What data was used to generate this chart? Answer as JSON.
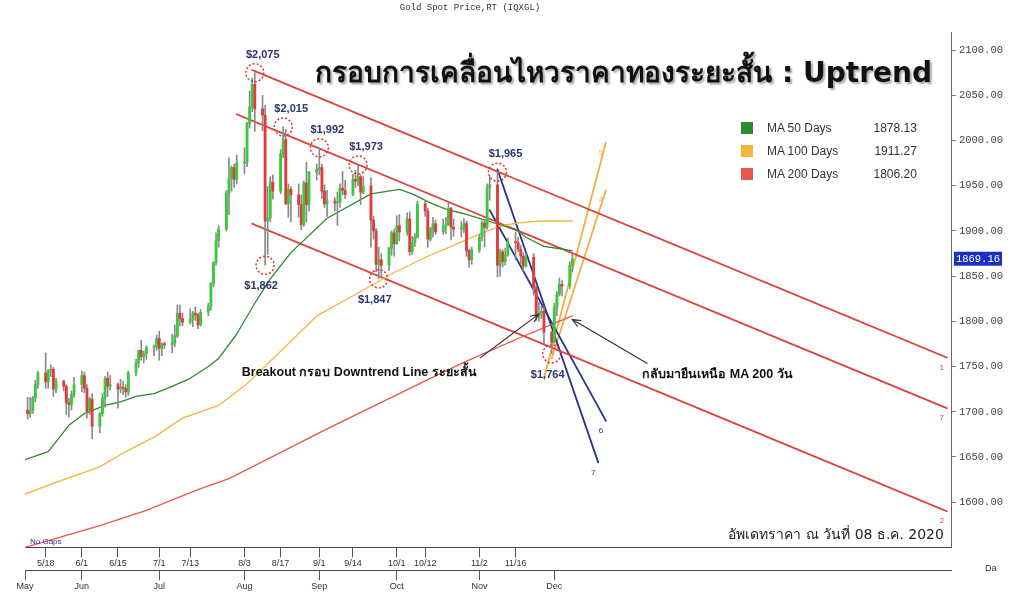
{
  "chart_data": {
    "type": "candlestick",
    "title": "กรอบการเคลื่อนไหวราคาทองระยะสั้น : Uptrend",
    "subtitle": "Gold Spot Price,RT (IQXGL)",
    "x": [
      "2020-05-11",
      "2020-05-12",
      "2020-05-13",
      "2020-05-14",
      "2020-05-15",
      "2020-05-18",
      "2020-05-19",
      "2020-05-20",
      "2020-05-21",
      "2020-05-22",
      "2020-05-25",
      "2020-05-26",
      "2020-05-27",
      "2020-05-28",
      "2020-05-29",
      "2020-06-01",
      "2020-06-02",
      "2020-06-03",
      "2020-06-04",
      "2020-06-05",
      "2020-06-08",
      "2020-06-09",
      "2020-06-10",
      "2020-06-11",
      "2020-06-12",
      "2020-06-15",
      "2020-06-16",
      "2020-06-17",
      "2020-06-18",
      "2020-06-19",
      "2020-06-22",
      "2020-06-23",
      "2020-06-24",
      "2020-06-25",
      "2020-06-26",
      "2020-06-29",
      "2020-06-30",
      "2020-07-01",
      "2020-07-02",
      "2020-07-03",
      "2020-07-06",
      "2020-07-07",
      "2020-07-08",
      "2020-07-09",
      "2020-07-10",
      "2020-07-13",
      "2020-07-14",
      "2020-07-15",
      "2020-07-16",
      "2020-07-17",
      "2020-07-20",
      "2020-07-21",
      "2020-07-22",
      "2020-07-23",
      "2020-07-24",
      "2020-07-27",
      "2020-07-28",
      "2020-07-29",
      "2020-07-30",
      "2020-07-31",
      "2020-08-03",
      "2020-08-04",
      "2020-08-05",
      "2020-08-06",
      "2020-08-07",
      "2020-08-10",
      "2020-08-11",
      "2020-08-12",
      "2020-08-13",
      "2020-08-14",
      "2020-08-17",
      "2020-08-18",
      "2020-08-19",
      "2020-08-20",
      "2020-08-21",
      "2020-08-24",
      "2020-08-25",
      "2020-08-26",
      "2020-08-27",
      "2020-08-28",
      "2020-08-31",
      "2020-09-01",
      "2020-09-02",
      "2020-09-03",
      "2020-09-04",
      "2020-09-07",
      "2020-09-08",
      "2020-09-09",
      "2020-09-10",
      "2020-09-11",
      "2020-09-14",
      "2020-09-15",
      "2020-09-16",
      "2020-09-17",
      "2020-09-18",
      "2020-09-21",
      "2020-09-22",
      "2020-09-23",
      "2020-09-24",
      "2020-09-25",
      "2020-09-28",
      "2020-09-29",
      "2020-09-30",
      "2020-10-01",
      "2020-10-02",
      "2020-10-05",
      "2020-10-06",
      "2020-10-07",
      "2020-10-08",
      "2020-10-09",
      "2020-10-12",
      "2020-10-13",
      "2020-10-14",
      "2020-10-15",
      "2020-10-16",
      "2020-10-19",
      "2020-10-20",
      "2020-10-21",
      "2020-10-22",
      "2020-10-23",
      "2020-10-26",
      "2020-10-27",
      "2020-10-28",
      "2020-10-29",
      "2020-10-30",
      "2020-11-02",
      "2020-11-03",
      "2020-11-04",
      "2020-11-05",
      "2020-11-06",
      "2020-11-09",
      "2020-11-10",
      "2020-11-11",
      "2020-11-12",
      "2020-11-13",
      "2020-11-16",
      "2020-11-17",
      "2020-11-18",
      "2020-11-19",
      "2020-11-20",
      "2020-11-23",
      "2020-11-24",
      "2020-11-25",
      "2020-11-26",
      "2020-11-27",
      "2020-11-30",
      "2020-12-01",
      "2020-12-02",
      "2020-12-03",
      "2020-12-04",
      "2020-12-07",
      "2020-12-08"
    ],
    "ohlc": [
      [
        1702,
        1716,
        1692,
        1698
      ],
      [
        1698,
        1716,
        1694,
        1701
      ],
      [
        1701,
        1717,
        1698,
        1715
      ],
      [
        1715,
        1735,
        1711,
        1730
      ],
      [
        1730,
        1745,
        1726,
        1743
      ],
      [
        1743,
        1765,
        1726,
        1733
      ],
      [
        1733,
        1747,
        1726,
        1745
      ],
      [
        1745,
        1752,
        1739,
        1747
      ],
      [
        1747,
        1749,
        1717,
        1725
      ],
      [
        1725,
        1737,
        1721,
        1734
      ],
      [
        1734,
        1735,
        1723,
        1728
      ],
      [
        1728,
        1730,
        1697,
        1710
      ],
      [
        1710,
        1715,
        1694,
        1708
      ],
      [
        1708,
        1723,
        1702,
        1719
      ],
      [
        1719,
        1738,
        1716,
        1730
      ],
      [
        1730,
        1745,
        1722,
        1740
      ],
      [
        1740,
        1744,
        1721,
        1726
      ],
      [
        1726,
        1730,
        1693,
        1700
      ],
      [
        1700,
        1716,
        1697,
        1714
      ],
      [
        1714,
        1720,
        1670,
        1684
      ],
      [
        1684,
        1699,
        1677,
        1698
      ],
      [
        1698,
        1720,
        1695,
        1715
      ],
      [
        1715,
        1739,
        1705,
        1737
      ],
      [
        1737,
        1744,
        1717,
        1728
      ],
      [
        1728,
        1740,
        1724,
        1730
      ],
      [
        1730,
        1732,
        1704,
        1725
      ],
      [
        1725,
        1736,
        1721,
        1727
      ],
      [
        1727,
        1734,
        1719,
        1726
      ],
      [
        1726,
        1730,
        1716,
        1722
      ],
      [
        1722,
        1745,
        1718,
        1743
      ],
      [
        1743,
        1758,
        1740,
        1754
      ],
      [
        1754,
        1768,
        1749,
        1768
      ],
      [
        1768,
        1779,
        1757,
        1761
      ],
      [
        1761,
        1767,
        1754,
        1764
      ],
      [
        1764,
        1773,
        1758,
        1771
      ],
      [
        1771,
        1774,
        1762,
        1772
      ],
      [
        1772,
        1785,
        1768,
        1781
      ],
      [
        1781,
        1789,
        1757,
        1770
      ],
      [
        1770,
        1776,
        1762,
        1775
      ],
      [
        1775,
        1777,
        1770,
        1774
      ],
      [
        1774,
        1786,
        1765,
        1776
      ],
      [
        1776,
        1796,
        1772,
        1784
      ],
      [
        1784,
        1818,
        1782,
        1809
      ],
      [
        1809,
        1818,
        1795,
        1803
      ],
      [
        1803,
        1809,
        1795,
        1799
      ],
      [
        1799,
        1814,
        1797,
        1802
      ],
      [
        1802,
        1811,
        1794,
        1809
      ],
      [
        1809,
        1816,
        1801,
        1807
      ],
      [
        1807,
        1809,
        1792,
        1796
      ],
      [
        1796,
        1813,
        1795,
        1810
      ],
      [
        1810,
        1820,
        1806,
        1817
      ],
      [
        1817,
        1843,
        1812,
        1842
      ],
      [
        1842,
        1866,
        1838,
        1865
      ],
      [
        1865,
        1898,
        1862,
        1889
      ],
      [
        1889,
        1906,
        1882,
        1902
      ],
      [
        1902,
        1945,
        1900,
        1942
      ],
      [
        1942,
        1981,
        1918,
        1958
      ],
      [
        1958,
        1972,
        1944,
        1970
      ],
      [
        1970,
        1974,
        1948,
        1957
      ],
      [
        1957,
        1984,
        1952,
        1975
      ],
      [
        1975,
        1992,
        1963,
        1976
      ],
      [
        1976,
        2020,
        1971,
        2019
      ],
      [
        2019,
        2055,
        2014,
        2037
      ],
      [
        2037,
        2069,
        2032,
        2062
      ],
      [
        2062,
        2075,
        2010,
        2035
      ],
      [
        2035,
        2050,
        2011,
        2028
      ],
      [
        2028,
        2039,
        1862,
        1911
      ],
      [
        1911,
        1949,
        1874,
        1914
      ],
      [
        1914,
        1960,
        1910,
        1954
      ],
      [
        1954,
        1962,
        1935,
        1944
      ],
      [
        1944,
        1990,
        1941,
        1985
      ],
      [
        1985,
        2015,
        1981,
        2001
      ],
      [
        2001,
        2012,
        1929,
        1930
      ],
      [
        1930,
        1952,
        1915,
        1946
      ],
      [
        1946,
        1949,
        1910,
        1940
      ],
      [
        1940,
        1952,
        1915,
        1929
      ],
      [
        1929,
        1940,
        1901,
        1907
      ],
      [
        1907,
        1955,
        1905,
        1953
      ],
      [
        1953,
        1976,
        1910,
        1929
      ],
      [
        1929,
        1966,
        1922,
        1965
      ],
      [
        1965,
        1974,
        1956,
        1968
      ],
      [
        1968,
        1992,
        1962,
        1970
      ],
      [
        1970,
        1974,
        1936,
        1944
      ],
      [
        1944,
        1951,
        1926,
        1930
      ],
      [
        1930,
        1945,
        1916,
        1933
      ],
      [
        1933,
        1937,
        1922,
        1931
      ],
      [
        1931,
        1943,
        1906,
        1932
      ],
      [
        1932,
        1952,
        1926,
        1947
      ],
      [
        1947,
        1966,
        1940,
        1945
      ],
      [
        1945,
        1956,
        1936,
        1940
      ],
      [
        1940,
        1963,
        1939,
        1957
      ],
      [
        1957,
        1967,
        1948,
        1955
      ],
      [
        1955,
        1973,
        1950,
        1960
      ],
      [
        1960,
        1962,
        1929,
        1943
      ],
      [
        1943,
        1960,
        1941,
        1950
      ],
      [
        1950,
        1959,
        1882,
        1912
      ],
      [
        1912,
        1916,
        1891,
        1900
      ],
      [
        1900,
        1903,
        1855,
        1863
      ],
      [
        1863,
        1882,
        1847,
        1868
      ],
      [
        1868,
        1875,
        1849,
        1862
      ],
      [
        1862,
        1882,
        1856,
        1881
      ],
      [
        1881,
        1900,
        1873,
        1898
      ],
      [
        1898,
        1902,
        1872,
        1886
      ],
      [
        1886,
        1917,
        1885,
        1906
      ],
      [
        1906,
        1918,
        1889,
        1899
      ],
      [
        1899,
        1920,
        1895,
        1913
      ],
      [
        1913,
        1921,
        1873,
        1877
      ],
      [
        1877,
        1894,
        1874,
        1887
      ],
      [
        1887,
        1897,
        1883,
        1893
      ],
      [
        1893,
        1933,
        1892,
        1930
      ],
      [
        1930,
        1933,
        1916,
        1922
      ],
      [
        1922,
        1925,
        1882,
        1891
      ],
      [
        1891,
        1904,
        1889,
        1902
      ],
      [
        1902,
        1915,
        1893,
        1908
      ],
      [
        1908,
        1912,
        1896,
        1899
      ],
      [
        1899,
        1913,
        1896,
        1905
      ],
      [
        1905,
        1915,
        1897,
        1907
      ],
      [
        1907,
        1931,
        1906,
        1925
      ],
      [
        1925,
        1926,
        1890,
        1904
      ],
      [
        1904,
        1913,
        1894,
        1902
      ],
      [
        1902,
        1911,
        1893,
        1903
      ],
      [
        1903,
        1914,
        1898,
        1908
      ],
      [
        1908,
        1911,
        1872,
        1878
      ],
      [
        1878,
        1880,
        1860,
        1868
      ],
      [
        1868,
        1882,
        1863,
        1879
      ],
      [
        1879,
        1896,
        1876,
        1893
      ],
      [
        1893,
        1911,
        1889,
        1909
      ],
      [
        1909,
        1912,
        1882,
        1904
      ],
      [
        1904,
        1952,
        1902,
        1948
      ],
      [
        1948,
        1960,
        1934,
        1951
      ],
      [
        1951,
        1965,
        1849,
        1862
      ],
      [
        1862,
        1880,
        1850,
        1877
      ],
      [
        1877,
        1879,
        1860,
        1866
      ],
      [
        1866,
        1881,
        1862,
        1873
      ],
      [
        1873,
        1892,
        1872,
        1888
      ],
      [
        1888,
        1899,
        1868,
        1887
      ],
      [
        1887,
        1893,
        1877,
        1880
      ],
      [
        1880,
        1884,
        1863,
        1872
      ],
      [
        1872,
        1876,
        1856,
        1861
      ],
      [
        1861,
        1875,
        1860,
        1871
      ],
      [
        1871,
        1875,
        1829,
        1837
      ],
      [
        1837,
        1840,
        1801,
        1805
      ],
      [
        1805,
        1821,
        1800,
        1809
      ],
      [
        1809,
        1817,
        1803,
        1811
      ],
      [
        1811,
        1816,
        1775,
        1788
      ],
      [
        1788,
        1789,
        1764,
        1777
      ],
      [
        1777,
        1820,
        1776,
        1815
      ],
      [
        1815,
        1833,
        1806,
        1830
      ],
      [
        1830,
        1848,
        1828,
        1841
      ],
      [
        1841,
        1845,
        1828,
        1839
      ],
      [
        1839,
        1866,
        1836,
        1862
      ],
      [
        1862,
        1874,
        1855,
        1869.16
      ]
    ],
    "colors": [
      "#e03c3c",
      "#3cc83c",
      "#3cc83c",
      "#3cc83c",
      "#3cc83c",
      "#e03c3c",
      "#3cc83c",
      "#3cc83c",
      "#e03c3c",
      "#3cc83c",
      "#e03c3c",
      "#e03c3c",
      "#e03c3c",
      "#3cc83c",
      "#3cc83c",
      "#3cc83c",
      "#e03c3c",
      "#e03c3c",
      "#3cc83c",
      "#e03c3c",
      "#3cc83c",
      "#3cc83c",
      "#3cc83c",
      "#e03c3c",
      "#3cc83c",
      "#e03c3c",
      "#3cc83c",
      "#e03c3c",
      "#e03c3c",
      "#3cc83c",
      "#3cc83c",
      "#3cc83c",
      "#e03c3c",
      "#3cc83c",
      "#3cc83c",
      "#3cc83c",
      "#3cc83c",
      "#e03c3c",
      "#3cc83c",
      "#e03c3c",
      "#3cc83c",
      "#3cc83c",
      "#3cc83c",
      "#e03c3c",
      "#e03c3c",
      "#3cc83c",
      "#3cc83c",
      "#e03c3c",
      "#e03c3c",
      "#3cc83c",
      "#3cc83c",
      "#3cc83c",
      "#3cc83c",
      "#3cc83c",
      "#3cc83c",
      "#3cc83c",
      "#3cc83c",
      "#3cc83c",
      "#e03c3c",
      "#3cc83c",
      "#3cc83c",
      "#3cc83c",
      "#3cc83c",
      "#3cc83c",
      "#e03c3c",
      "#e03c3c",
      "#e03c3c",
      "#3cc83c",
      "#3cc83c",
      "#e03c3c",
      "#3cc83c",
      "#3cc83c",
      "#e03c3c",
      "#3cc83c",
      "#e03c3c",
      "#e03c3c",
      "#e03c3c",
      "#3cc83c",
      "#e03c3c",
      "#3cc83c",
      "#3cc83c",
      "#3cc83c",
      "#e03c3c",
      "#e03c3c",
      "#3cc83c",
      "#e03c3c",
      "#3cc83c",
      "#3cc83c",
      "#e03c3c",
      "#e03c3c",
      "#3cc83c",
      "#e03c3c",
      "#3cc83c",
      "#e03c3c",
      "#3cc83c",
      "#e03c3c",
      "#e03c3c",
      "#e03c3c",
      "#3cc83c",
      "#e03c3c",
      "#3cc83c",
      "#3cc83c",
      "#e03c3c",
      "#3cc83c",
      "#e03c3c",
      "#3cc83c",
      "#e03c3c",
      "#3cc83c",
      "#3cc83c",
      "#3cc83c",
      "#e03c3c",
      "#e03c3c",
      "#3cc83c",
      "#3cc83c",
      "#e03c3c",
      "#3cc83c",
      "#3cc83c",
      "#3cc83c",
      "#e03c3c",
      "#e03c3c",
      "#3cc83c",
      "#3cc83c",
      "#e03c3c",
      "#e03c3c",
      "#3cc83c",
      "#3cc83c",
      "#3cc83c",
      "#e03c3c",
      "#3cc83c",
      "#3cc83c",
      "#e03c3c",
      "#3cc83c",
      "#e03c3c",
      "#3cc83c",
      "#3cc83c",
      "#e03c3c",
      "#e03c3c",
      "#e03c3c",
      "#e03c3c",
      "#3cc83c",
      "#e03c3c",
      "#e03c3c",
      "#3cc83c",
      "#3cc83c",
      "#e03c3c",
      "#e03c3c",
      "#3cc83c",
      "#3cc83c",
      "#3cc83c",
      "#e03c3c",
      "#3cc83c",
      "#3cc83c"
    ],
    "series": [
      {
        "name": "MA 50 Days",
        "type": "line",
        "color": "#2f8a2f",
        "x": [
          "2020-05-10",
          "2020-05-19",
          "2020-05-27",
          "2020-06-02",
          "2020-06-10",
          "2020-06-16",
          "2020-06-22",
          "2020-06-29",
          "2020-07-06",
          "2020-07-13",
          "2020-07-20",
          "2020-07-24",
          "2020-07-31",
          "2020-08-07",
          "2020-08-13",
          "2020-08-21",
          "2020-09-04",
          "2020-09-21",
          "2020-10-02",
          "2020-10-07",
          "2020-10-14",
          "2020-10-20",
          "2020-10-27",
          "2020-11-02",
          "2020-11-11",
          "2020-11-17",
          "2020-11-20",
          "2020-11-27",
          "2020-12-04",
          "2020-12-08"
        ],
        "values": [
          1647,
          1656,
          1685,
          1698,
          1707,
          1711,
          1717,
          1720,
          1728,
          1737,
          1750,
          1759,
          1786,
          1820,
          1847,
          1876,
          1914,
          1941,
          1946,
          1941,
          1931,
          1924,
          1919,
          1914,
          1906,
          1900,
          1893,
          1883,
          1880,
          1878
        ]
      },
      {
        "name": "MA 100 Days",
        "type": "line",
        "color": "#f2b63c",
        "x": [
          "2020-05-10",
          "2020-05-22",
          "2020-06-08",
          "2020-06-18",
          "2020-06-29",
          "2020-07-10",
          "2020-07-24",
          "2020-08-04",
          "2020-08-17",
          "2020-08-31",
          "2020-09-17",
          "2020-09-30",
          "2020-10-13",
          "2020-10-27",
          "2020-11-05",
          "2020-11-11",
          "2020-11-17",
          "2020-11-26",
          "2020-12-08"
        ],
        "values": [
          1609,
          1622,
          1639,
          1656,
          1672,
          1693,
          1707,
          1731,
          1767,
          1806,
          1833,
          1854,
          1872,
          1889,
          1900,
          1906,
          1909,
          1911,
          1911
        ]
      },
      {
        "name": "MA 200 Days",
        "type": "line",
        "color": "#e8574a",
        "x": [
          "2020-05-10",
          "2020-06-08",
          "2020-06-26",
          "2020-07-16",
          "2020-07-28",
          "2020-09-04",
          "2020-10-14",
          "2020-10-28",
          "2020-11-17",
          "2020-12-08"
        ],
        "values": [
          1550,
          1574,
          1591,
          1614,
          1626,
          1681,
          1737,
          1756,
          1781,
          1806
        ]
      },
      {
        "name": "1",
        "type": "line",
        "color": "#e0403a",
        "x": [
          "2020-08-06",
          "2021-05-02"
        ],
        "values": [
          2078,
          1760
        ]
      },
      {
        "name": "7",
        "type": "line",
        "color": "#e0403a",
        "x": [
          "2020-07-31",
          "2021-05-02"
        ],
        "values": [
          2029,
          1704
        ]
      },
      {
        "name": "2",
        "type": "line",
        "color": "#e0403a",
        "x": [
          "2020-08-06",
          "2021-05-02"
        ],
        "values": [
          1908,
          1590
        ]
      },
      {
        "name": "7",
        "type": "line",
        "color": "#2b3190",
        "x": [
          "2020-11-09",
          "2020-12-18"
        ],
        "values": [
          1968,
          1644
        ]
      },
      {
        "name": "6",
        "type": "line",
        "color": "#2b3190",
        "x": [
          "2020-11-06",
          "2020-12-21"
        ],
        "values": [
          1923,
          1690
        ]
      },
      {
        "name": "5",
        "type": "line",
        "color": "#f0b040",
        "x": [
          "2020-11-27",
          "2020-12-21"
        ],
        "values": [
          1737,
          1998
        ]
      },
      {
        "name": "4",
        "type": "line",
        "color": "#f0b040",
        "x": [
          "2020-11-30",
          "2020-12-21"
        ],
        "values": [
          1759,
          1945
        ]
      }
    ],
    "xlim": [
      "2020-05-10",
      "2021-05-04"
    ],
    "xticks": [
      {
        "value": "2020-05-18",
        "label": "5/18"
      },
      {
        "value": "2020-06-01",
        "label": "6/1"
      },
      {
        "value": "2020-06-15",
        "label": "6/15"
      },
      {
        "value": "2020-07-01",
        "label": "7/1"
      },
      {
        "value": "2020-07-13",
        "label": "7/13"
      },
      {
        "value": "2020-08-03",
        "label": "8/3"
      },
      {
        "value": "2020-08-17",
        "label": "8/17"
      },
      {
        "value": "2020-09-01",
        "label": "9/1"
      },
      {
        "value": "2020-09-14",
        "label": "9/14"
      },
      {
        "value": "2020-10-01",
        "label": "10/1"
      },
      {
        "value": "2020-10-12",
        "label": "10/12"
      },
      {
        "value": "2020-11-02",
        "label": "11/2"
      },
      {
        "value": "2020-11-16",
        "label": "11/16"
      }
    ],
    "x2lim": [
      "2020-05-10",
      "2021-05-04"
    ],
    "x2ticks": [
      {
        "value": "2020-05-10",
        "label": "May"
      },
      {
        "value": "2020-06-01",
        "label": "Jun"
      },
      {
        "value": "2020-07-01",
        "label": "Jul"
      },
      {
        "value": "2020-08-03",
        "label": "Aug"
      },
      {
        "value": "2020-09-01",
        "label": "Sep"
      },
      {
        "value": "2020-10-01",
        "label": "Oct"
      },
      {
        "value": "2020-11-02",
        "label": "Nov"
      },
      {
        "value": "2020-12-01",
        "label": "Dec"
      }
    ],
    "ylim": [
      1550,
      2120
    ],
    "yticks": [
      {
        "value": 1600,
        "label": "1600.00"
      },
      {
        "value": 1650,
        "label": "1650.00"
      },
      {
        "value": 1700,
        "label": "1700.00"
      },
      {
        "value": 1750,
        "label": "1750.00"
      },
      {
        "value": 1800,
        "label": "1800.00"
      },
      {
        "value": 1850,
        "label": "1850.00"
      },
      {
        "value": 1900,
        "label": "1900.00"
      },
      {
        "value": 1950,
        "label": "1950.00"
      },
      {
        "value": 2000,
        "label": "2000.00"
      },
      {
        "value": 2050,
        "label": "2050.00"
      },
      {
        "value": 2100,
        "label": "2100.00"
      }
    ],
    "legend": "top right",
    "annotations": [
      {
        "text": "$2,075",
        "x": "2020-08-07",
        "y": 2075
      },
      {
        "text": "$2,015",
        "x": "2020-08-18",
        "y": 2015
      },
      {
        "text": "$1,992",
        "x": "2020-09-01",
        "y": 1992
      },
      {
        "text": "$1,973",
        "x": "2020-09-16",
        "y": 1973
      },
      {
        "text": "$1,965",
        "x": "2020-11-09",
        "y": 1965
      },
      {
        "text": "$1,862",
        "x": "2020-08-11",
        "y": 1862
      },
      {
        "text": "$1,847",
        "x": "2020-09-24",
        "y": 1847
      },
      {
        "text": "$1,764",
        "x": "2020-11-30",
        "y": 1764
      },
      {
        "text": "Breakout กรอบ Downtrend Line ระยะสั้น",
        "x": "2020-11-25",
        "y": 1808
      },
      {
        "text": "กลับมายืนเหนือ MA 200 วัน",
        "x": "2020-12-08",
        "y": 1802
      },
      "1869.16",
      "อัพเดทราคา ณ วันที่ 08 ธ.ค. 2020",
      "No Gaps",
      "Da",
      "1878.13",
      "1911.27",
      "1806.20"
    ]
  }
}
